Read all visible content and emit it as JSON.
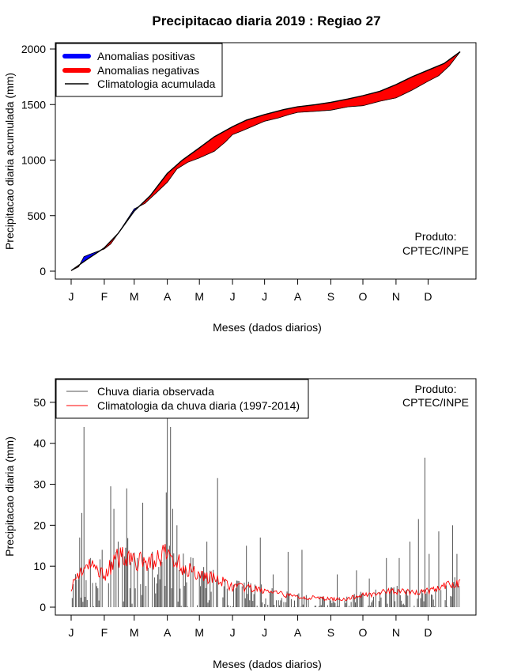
{
  "chart_data": [
    {
      "type": "area",
      "title": "Precipitacao diaria 2019 : Regiao 27",
      "xlabel": "Meses (dados diarios)",
      "ylabel": "Precipitacao diaria acumulada (mm)",
      "xlim": [
        1,
        365
      ],
      "ylim": [
        0,
        2000
      ],
      "yticks": [
        "0",
        "500",
        "1000",
        "1500",
        "2000"
      ],
      "month_labels": [
        "J",
        "F",
        "M",
        "A",
        "M",
        "J",
        "J",
        "A",
        "S",
        "O",
        "N",
        "D"
      ],
      "month_start_days": [
        1,
        32,
        60,
        91,
        121,
        152,
        182,
        213,
        244,
        274,
        305,
        335
      ],
      "legend": [
        "Anomalias positivas",
        "Anomalias negativas",
        "Climatologia acumulada"
      ],
      "legend_position": "top-left",
      "colors": {
        "positive": "#0000ff",
        "negative": "#ff0000",
        "climatology": "#000000"
      },
      "annotation": [
        "Produto:",
        "CPTEC/INPE"
      ],
      "climatology_points": [
        [
          1,
          5
        ],
        [
          15,
          100
        ],
        [
          32,
          210
        ],
        [
          45,
          340
        ],
        [
          60,
          540
        ],
        [
          75,
          680
        ],
        [
          91,
          880
        ],
        [
          105,
          1000
        ],
        [
          121,
          1110
        ],
        [
          135,
          1210
        ],
        [
          152,
          1300
        ],
        [
          165,
          1360
        ],
        [
          182,
          1410
        ],
        [
          200,
          1455
        ],
        [
          213,
          1480
        ],
        [
          230,
          1500
        ],
        [
          244,
          1520
        ],
        [
          260,
          1550
        ],
        [
          274,
          1580
        ],
        [
          290,
          1620
        ],
        [
          305,
          1680
        ],
        [
          320,
          1750
        ],
        [
          335,
          1810
        ],
        [
          350,
          1870
        ],
        [
          365,
          1975
        ]
      ],
      "observed_points": [
        [
          1,
          5
        ],
        [
          8,
          40
        ],
        [
          13,
          130
        ],
        [
          18,
          150
        ],
        [
          32,
          200
        ],
        [
          38,
          245
        ],
        [
          45,
          340
        ],
        [
          60,
          560
        ],
        [
          70,
          610
        ],
        [
          80,
          700
        ],
        [
          91,
          800
        ],
        [
          100,
          920
        ],
        [
          110,
          980
        ],
        [
          121,
          1020
        ],
        [
          135,
          1080
        ],
        [
          145,
          1160
        ],
        [
          152,
          1230
        ],
        [
          160,
          1260
        ],
        [
          170,
          1300
        ],
        [
          182,
          1350
        ],
        [
          195,
          1380
        ],
        [
          205,
          1410
        ],
        [
          213,
          1430
        ],
        [
          230,
          1440
        ],
        [
          244,
          1450
        ],
        [
          260,
          1480
        ],
        [
          274,
          1490
        ],
        [
          290,
          1530
        ],
        [
          305,
          1560
        ],
        [
          320,
          1630
        ],
        [
          335,
          1710
        ],
        [
          345,
          1760
        ],
        [
          355,
          1850
        ],
        [
          365,
          1975
        ]
      ]
    },
    {
      "type": "bar",
      "xlabel": "Meses (dados diarios)",
      "ylabel": "Precipitacao diaria (mm)",
      "xlim": [
        1,
        365
      ],
      "ylim": [
        0,
        55
      ],
      "yticks": [
        "0",
        "10",
        "20",
        "30",
        "40",
        "50"
      ],
      "month_labels": [
        "J",
        "F",
        "M",
        "A",
        "M",
        "J",
        "J",
        "A",
        "S",
        "O",
        "N",
        "D"
      ],
      "month_start_days": [
        1,
        32,
        60,
        91,
        121,
        152,
        182,
        213,
        244,
        274,
        305,
        335
      ],
      "legend": [
        "Chuva diaria observada",
        "Climatologia da chuva diaria (1997-2014)"
      ],
      "legend_position": "top-left",
      "colors": {
        "observed": "#555555",
        "climatology": "#ff0000"
      },
      "annotation": [
        "Produto:",
        "CPTEC/INPE"
      ],
      "observed_peaks": [
        [
          9,
          17
        ],
        [
          11,
          23
        ],
        [
          13,
          44
        ],
        [
          19,
          12
        ],
        [
          30,
          14
        ],
        [
          38,
          29.5
        ],
        [
          41,
          24
        ],
        [
          45,
          16
        ],
        [
          53,
          29
        ],
        [
          68,
          25.5
        ],
        [
          82,
          8
        ],
        [
          90,
          28
        ],
        [
          91,
          47
        ],
        [
          94,
          44
        ],
        [
          96,
          24
        ],
        [
          100,
          20
        ],
        [
          115,
          12
        ],
        [
          128,
          16
        ],
        [
          138,
          31.5
        ],
        [
          165,
          15
        ],
        [
          178,
          17
        ],
        [
          190,
          8
        ],
        [
          204,
          13.5
        ],
        [
          217,
          14
        ],
        [
          250,
          8
        ],
        [
          268,
          9
        ],
        [
          280,
          7
        ],
        [
          296,
          12
        ],
        [
          308,
          12
        ],
        [
          318,
          16
        ],
        [
          326,
          21.5
        ],
        [
          332,
          36.5
        ],
        [
          336,
          13
        ],
        [
          345,
          18.5
        ],
        [
          358,
          20
        ],
        [
          362,
          13
        ]
      ],
      "climatology_points": [
        [
          1,
          5
        ],
        [
          10,
          9
        ],
        [
          20,
          10
        ],
        [
          32,
          8
        ],
        [
          45,
          12
        ],
        [
          55,
          13
        ],
        [
          60,
          11
        ],
        [
          75,
          11
        ],
        [
          91,
          13
        ],
        [
          105,
          10
        ],
        [
          121,
          8
        ],
        [
          135,
          7
        ],
        [
          152,
          5
        ],
        [
          170,
          4.5
        ],
        [
          182,
          4
        ],
        [
          200,
          3
        ],
        [
          213,
          2.5
        ],
        [
          244,
          2
        ],
        [
          260,
          2
        ],
        [
          274,
          3
        ],
        [
          290,
          3.5
        ],
        [
          305,
          4
        ],
        [
          320,
          3.5
        ],
        [
          335,
          4
        ],
        [
          350,
          5
        ],
        [
          365,
          6
        ]
      ]
    }
  ]
}
